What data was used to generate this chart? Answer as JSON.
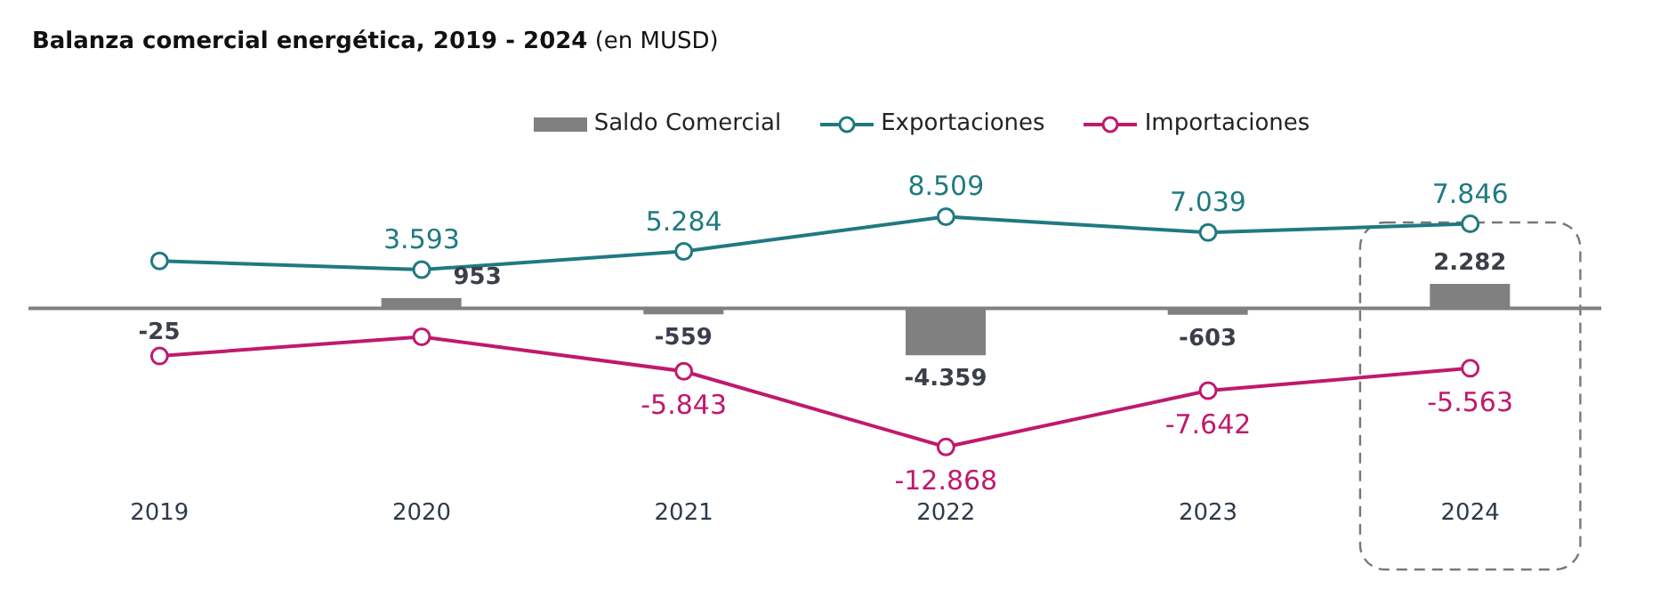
{
  "chart_data": {
    "type": "bar",
    "title": "Balanza comercial energética, 2019 - 2024",
    "subtitle": "(en MUSD)",
    "categories": [
      "2019",
      "2020",
      "2021",
      "2022",
      "2023",
      "2024"
    ],
    "series": [
      {
        "name": "Saldo Comercial",
        "color": "#808080",
        "values": [
          -25,
          953,
          -559,
          -4359,
          -603,
          2282
        ],
        "value_labels": [
          "-25",
          "953",
          "-559",
          "-4.359",
          "-603",
          "2.282"
        ]
      },
      {
        "name": "Exportaciones",
        "type": "line",
        "color": "#1f7a80",
        "values": [
          4400,
          3593,
          5284,
          8509,
          7039,
          7846
        ],
        "value_labels": [
          null,
          "3.593",
          "5.284",
          "8.509",
          "7.039",
          "7.846"
        ]
      },
      {
        "name": "Importaciones",
        "type": "line",
        "color": "#c0196e",
        "values": [
          -4425,
          -2640,
          -5843,
          -12868,
          -7642,
          -5563
        ],
        "value_labels": [
          null,
          null,
          "-5.843",
          "-12.868",
          "-7.642",
          "-5.563"
        ]
      }
    ],
    "marker": "circle",
    "legend": "top",
    "grid": false
  }
}
